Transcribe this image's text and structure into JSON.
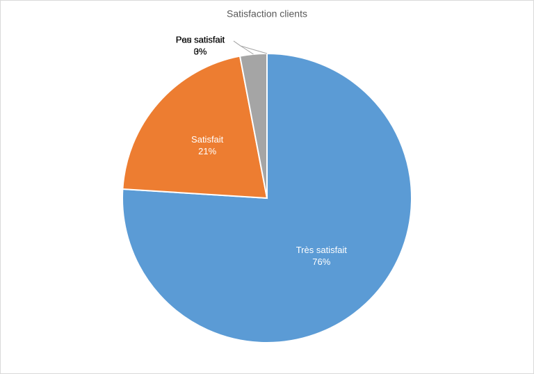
{
  "chart_data": {
    "type": "pie",
    "title": "Satisfaction clients",
    "categories": [
      "Très satisfait",
      "Satisfait",
      "Peu satisfait",
      "Pas satisfait"
    ],
    "values": [
      76,
      21,
      3,
      0
    ],
    "value_labels": [
      "76%",
      "21%",
      "3%",
      "0%"
    ],
    "colors": [
      "#5b9bd5",
      "#ed7d31",
      "#a5a5a5",
      "#ffc000"
    ]
  }
}
